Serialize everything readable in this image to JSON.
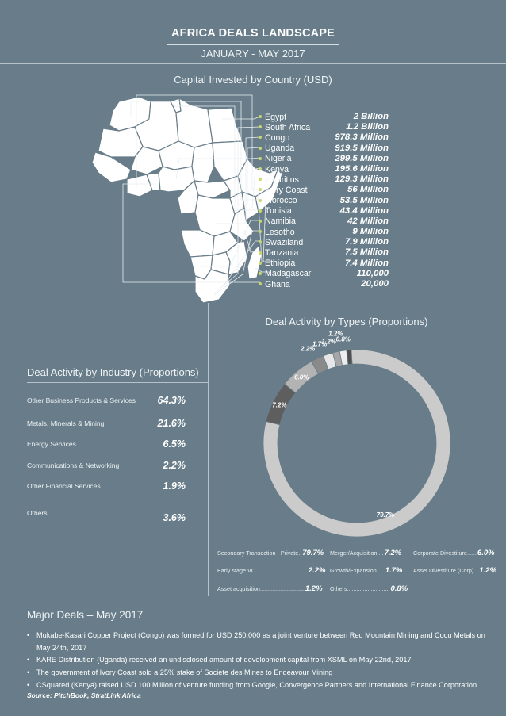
{
  "header": {
    "title": "AFRICA DEALS LANDSCAPE",
    "subtitle": "JANUARY - MAY 2017"
  },
  "capital": {
    "title": "Capital Invested by Country (USD)",
    "rows": [
      {
        "country": "Egypt",
        "value": "2 Billion"
      },
      {
        "country": "South Africa",
        "value": "1.2 Billion"
      },
      {
        "country": "Congo",
        "value": "978.3 Million"
      },
      {
        "country": "Uganda",
        "value": "919.5 Million"
      },
      {
        "country": "Nigeria",
        "value": "299.5 Million"
      },
      {
        "country": "Kenya",
        "value": "195.6 Million"
      },
      {
        "country": "Mauritius",
        "value": "129.3 Million"
      },
      {
        "country": "Ivory Coast",
        "value": "56 Million"
      },
      {
        "country": "Morocco",
        "value": "53.5 Million"
      },
      {
        "country": "Tunisia",
        "value": "43.4 Million"
      },
      {
        "country": "Namibia",
        "value": "42 Million"
      },
      {
        "country": "Lesotho",
        "value": "9 Million"
      },
      {
        "country": "Swaziland",
        "value": "7.9 Million"
      },
      {
        "country": "Tanzania",
        "value": "7.5 Million"
      },
      {
        "country": "Ethiopia",
        "value": "7.4 Million"
      },
      {
        "country": "Madagascar",
        "value": "110,000"
      },
      {
        "country": "Ghana",
        "value": "20,000"
      }
    ]
  },
  "industry": {
    "title": "Deal Activity by Industry (Proportions)",
    "rows": [
      {
        "label": "Other Business Products & Services",
        "value": "64.3%"
      },
      {
        "label": "Metals, Minerals & Mining",
        "value": "21.6%"
      },
      {
        "label": "Energy Services",
        "value": "6.5%"
      },
      {
        "label": "Communications & Networking",
        "value": "2.2%"
      },
      {
        "label": "Other Financial Services",
        "value": "1.9%"
      },
      {
        "label": "Others",
        "value": "3.6%"
      }
    ]
  },
  "types": {
    "title": "Deal Activity by Types (Proportions)",
    "legend": [
      {
        "label": "Secondary Transaction - Private..",
        "value": "79.7%"
      },
      {
        "label": "Merger/Acquisition....",
        "value": "7.2%"
      },
      {
        "label": "Corporate Divestiture......",
        "value": "6.0%"
      },
      {
        "label": "Early stage VC.................................",
        "value": "2.2%"
      },
      {
        "label": "Growth/Expansion.....",
        "value": "1.7%"
      },
      {
        "label": "Asset Divestiture (Corp)...",
        "value": "1.2%"
      },
      {
        "label": "Asset acquisition............................",
        "value": "1.2%"
      },
      {
        "label": "Others...........................",
        "value": "0.8%"
      }
    ]
  },
  "chart_data": {
    "type": "pie",
    "title": "Deal Activity by Types (Proportions)",
    "categories": [
      "Secondary Transaction - Private",
      "Merger/Acquisition",
      "Corporate Divestiture",
      "Early stage VC",
      "Growth/Expansion",
      "Asset Divestiture (Corp)",
      "Asset acquisition",
      "Others"
    ],
    "values": [
      79.7,
      7.2,
      6.0,
      2.2,
      1.7,
      1.2,
      1.2,
      0.8
    ],
    "labels": [
      "79.7%",
      "7.2%",
      "6.0%",
      "2.2%",
      "1.7%",
      "1.2%",
      "1.2%",
      "0.8%"
    ],
    "colors": [
      "#cbcbcb",
      "#5e5e5e",
      "#b3b3b3",
      "#8a8a8a",
      "#e6e6e6",
      "#a6a6a6",
      "#ededed",
      "#4f4f4f"
    ]
  },
  "major_deals": {
    "title": "Major Deals – May 2017",
    "bullet": "•",
    "items": [
      "Mukabe-Kasari Copper Project (Congo) was formed for USD 250,000 as a joint venture between Red Mountain Mining and Cocu Metals on May 24th, 2017",
      "KARE Distribution (Uganda) received an undisclosed amount of development capital from XSML on May 22nd, 2017",
      "The government of Ivory Coast sold a 25% stake of Societe des Mines to Endeavour Mining",
      "CSquared (Kenya) raised USD 100 Million of venture funding from Google, Convergence Partners and International Finance Corporation"
    ],
    "source": "Source: PitchBook, StratLink Africa"
  }
}
